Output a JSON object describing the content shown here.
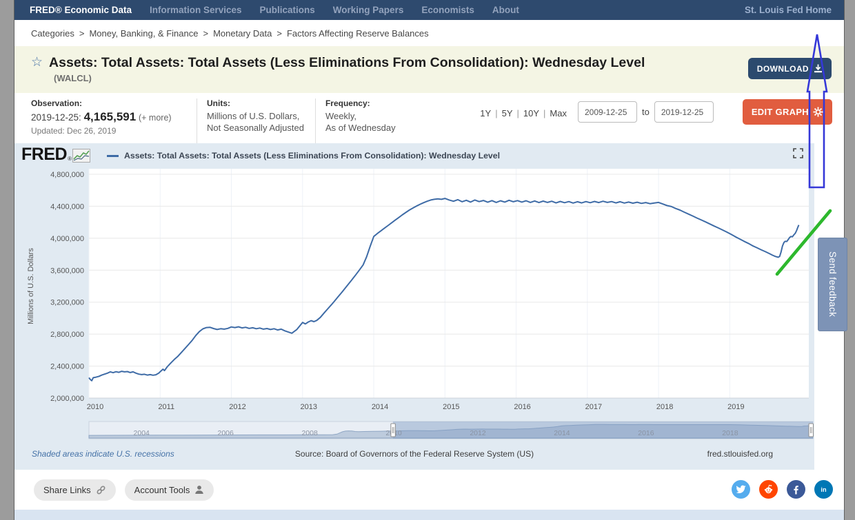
{
  "nav": {
    "brand": "FRED® Economic Data",
    "items": [
      "Information Services",
      "Publications",
      "Working Papers",
      "Economists",
      "About"
    ],
    "right_link": "St. Louis Fed Home"
  },
  "breadcrumb": {
    "separator": ">",
    "parts": [
      "Categories",
      "Money, Banking, & Finance",
      "Monetary Data",
      "Factors Affecting Reserve Balances"
    ]
  },
  "series_header": {
    "title": "Assets: Total Assets: Total Assets (Less Eliminations From Consolidation): Wednesday Level",
    "series_id": "(WALCL)",
    "download_label": "DOWNLOAD"
  },
  "meta": {
    "observation_label": "Observation:",
    "observation_date": "2019-12-25:",
    "observation_value": "4,165,591",
    "observation_more": "(+ more)",
    "updated": "Updated: Dec 26, 2019",
    "units_label": "Units:",
    "units_line1": "Millions of U.S. Dollars,",
    "units_line2": "Not Seasonally Adjusted",
    "frequency_label": "Frequency:",
    "frequency_line1": "Weekly,",
    "frequency_line2": "As of Wednesday"
  },
  "range_controls": {
    "presets": [
      "1Y",
      "5Y",
      "10Y",
      "Max"
    ],
    "start_date": "2009-12-25",
    "to_label": "to",
    "end_date": "2019-12-25",
    "edit_graph_label": "EDIT GRAPH"
  },
  "chart": {
    "logo_text": "FRED",
    "logo_reg": "®",
    "legend_label": "Assets: Total Assets: Total Assets (Less Eliminations From Consolidation): Wednesday Level"
  },
  "chart_footer": {
    "recessions_note": "Shaded areas indicate U.S. recessions",
    "source_note": "Source: Board of Governors of the Federal Reserve System (US)",
    "site_link": "fred.stlouisfed.org"
  },
  "actions": {
    "share_label": "Share Links",
    "account_label": "Account Tools"
  },
  "social": [
    {
      "name": "twitter",
      "color": "#55acee"
    },
    {
      "name": "reddit",
      "color": "#ff4500"
    },
    {
      "name": "facebook",
      "color": "#3b5998"
    },
    {
      "name": "linkedin",
      "color": "#0077b5"
    }
  ],
  "feedback_label": "Send feedback",
  "colors": {
    "nav_bg": "#2e4a6e",
    "band_bg": "#f4f5e4",
    "btn_navy": "#2c4a6e",
    "btn_orange": "#e15d3f",
    "panel_bg": "#e1eaf2",
    "line_blue": "#3e6ba6",
    "feedback_bg": "#7d93b6",
    "annotation_blue": "#3538d8",
    "annotation_green": "#2db82d"
  },
  "chart_data": {
    "type": "line",
    "title": "Assets: Total Assets: Total Assets (Less Eliminations From Consolidation): Wednesday Level",
    "ylabel": "Millions of U.S. Dollars",
    "ylim": [
      2000000,
      4800000
    ],
    "yticks": [
      2000000,
      2400000,
      2800000,
      3200000,
      3600000,
      4000000,
      4400000,
      4800000
    ],
    "xticks": [
      2010,
      2011,
      2012,
      2013,
      2014,
      2015,
      2016,
      2017,
      2018,
      2019
    ],
    "xlim": [
      2010,
      2020.11
    ],
    "grid": true,
    "legend_position": "top",
    "series": [
      {
        "name": "WALCL",
        "points": [
          [
            2010.0,
            2255000
          ],
          [
            2010.02,
            2232000
          ],
          [
            2010.04,
            2218000
          ],
          [
            2010.06,
            2255000
          ],
          [
            2010.1,
            2262000
          ],
          [
            2010.14,
            2272000
          ],
          [
            2010.18,
            2288000
          ],
          [
            2010.22,
            2300000
          ],
          [
            2010.26,
            2312000
          ],
          [
            2010.3,
            2328000
          ],
          [
            2010.34,
            2318000
          ],
          [
            2010.38,
            2330000
          ],
          [
            2010.42,
            2322000
          ],
          [
            2010.46,
            2335000
          ],
          [
            2010.5,
            2328000
          ],
          [
            2010.54,
            2332000
          ],
          [
            2010.58,
            2320000
          ],
          [
            2010.62,
            2328000
          ],
          [
            2010.66,
            2312000
          ],
          [
            2010.7,
            2300000
          ],
          [
            2010.74,
            2294000
          ],
          [
            2010.78,
            2298000
          ],
          [
            2010.82,
            2288000
          ],
          [
            2010.86,
            2294000
          ],
          [
            2010.9,
            2286000
          ],
          [
            2010.94,
            2292000
          ],
          [
            2010.98,
            2312000
          ],
          [
            2011.0,
            2330000
          ],
          [
            2011.04,
            2362000
          ],
          [
            2011.06,
            2344000
          ],
          [
            2011.1,
            2392000
          ],
          [
            2011.15,
            2440000
          ],
          [
            2011.2,
            2484000
          ],
          [
            2011.25,
            2524000
          ],
          [
            2011.3,
            2572000
          ],
          [
            2011.35,
            2622000
          ],
          [
            2011.4,
            2672000
          ],
          [
            2011.45,
            2722000
          ],
          [
            2011.5,
            2782000
          ],
          [
            2011.55,
            2832000
          ],
          [
            2011.6,
            2866000
          ],
          [
            2011.65,
            2882000
          ],
          [
            2011.7,
            2886000
          ],
          [
            2011.75,
            2870000
          ],
          [
            2011.8,
            2858000
          ],
          [
            2011.85,
            2868000
          ],
          [
            2011.9,
            2862000
          ],
          [
            2011.95,
            2872000
          ],
          [
            2012.0,
            2890000
          ],
          [
            2012.05,
            2882000
          ],
          [
            2012.1,
            2892000
          ],
          [
            2012.15,
            2878000
          ],
          [
            2012.2,
            2886000
          ],
          [
            2012.25,
            2872000
          ],
          [
            2012.3,
            2880000
          ],
          [
            2012.35,
            2868000
          ],
          [
            2012.4,
            2876000
          ],
          [
            2012.45,
            2862000
          ],
          [
            2012.5,
            2870000
          ],
          [
            2012.55,
            2858000
          ],
          [
            2012.6,
            2868000
          ],
          [
            2012.65,
            2852000
          ],
          [
            2012.7,
            2862000
          ],
          [
            2012.75,
            2842000
          ],
          [
            2012.8,
            2826000
          ],
          [
            2012.85,
            2812000
          ],
          [
            2012.88,
            2832000
          ],
          [
            2012.92,
            2858000
          ],
          [
            2012.96,
            2902000
          ],
          [
            2013.0,
            2946000
          ],
          [
            2013.04,
            2928000
          ],
          [
            2013.08,
            2952000
          ],
          [
            2013.12,
            2968000
          ],
          [
            2013.16,
            2956000
          ],
          [
            2013.2,
            2972000
          ],
          [
            2013.25,
            3010000
          ],
          [
            2013.3,
            3062000
          ],
          [
            2013.35,
            3112000
          ],
          [
            2013.4,
            3162000
          ],
          [
            2013.45,
            3215000
          ],
          [
            2013.5,
            3268000
          ],
          [
            2013.55,
            3322000
          ],
          [
            2013.6,
            3378000
          ],
          [
            2013.65,
            3432000
          ],
          [
            2013.7,
            3488000
          ],
          [
            2013.75,
            3545000
          ],
          [
            2013.8,
            3604000
          ],
          [
            2013.85,
            3665000
          ],
          [
            2013.9,
            3768000
          ],
          [
            2013.95,
            3900000
          ],
          [
            2014.0,
            4022000
          ],
          [
            2014.05,
            4058000
          ],
          [
            2014.1,
            4092000
          ],
          [
            2014.15,
            4125000
          ],
          [
            2014.2,
            4158000
          ],
          [
            2014.25,
            4192000
          ],
          [
            2014.3,
            4225000
          ],
          [
            2014.35,
            4258000
          ],
          [
            2014.4,
            4292000
          ],
          [
            2014.45,
            4322000
          ],
          [
            2014.5,
            4352000
          ],
          [
            2014.55,
            4378000
          ],
          [
            2014.6,
            4402000
          ],
          [
            2014.65,
            4424000
          ],
          [
            2014.7,
            4444000
          ],
          [
            2014.75,
            4462000
          ],
          [
            2014.8,
            4478000
          ],
          [
            2014.85,
            4486000
          ],
          [
            2014.9,
            4492000
          ],
          [
            2014.95,
            4486000
          ],
          [
            2015.0,
            4498000
          ],
          [
            2015.06,
            4478000
          ],
          [
            2015.12,
            4462000
          ],
          [
            2015.18,
            4482000
          ],
          [
            2015.24,
            4456000
          ],
          [
            2015.3,
            4474000
          ],
          [
            2015.36,
            4452000
          ],
          [
            2015.42,
            4478000
          ],
          [
            2015.48,
            4458000
          ],
          [
            2015.54,
            4472000
          ],
          [
            2015.6,
            4450000
          ],
          [
            2015.66,
            4470000
          ],
          [
            2015.72,
            4448000
          ],
          [
            2015.78,
            4468000
          ],
          [
            2015.84,
            4452000
          ],
          [
            2015.9,
            4474000
          ],
          [
            2015.96,
            4456000
          ],
          [
            2016.02,
            4470000
          ],
          [
            2016.08,
            4452000
          ],
          [
            2016.14,
            4468000
          ],
          [
            2016.2,
            4448000
          ],
          [
            2016.26,
            4466000
          ],
          [
            2016.32,
            4446000
          ],
          [
            2016.38,
            4464000
          ],
          [
            2016.44,
            4448000
          ],
          [
            2016.5,
            4462000
          ],
          [
            2016.56,
            4442000
          ],
          [
            2016.62,
            4460000
          ],
          [
            2016.68,
            4444000
          ],
          [
            2016.74,
            4458000
          ],
          [
            2016.8,
            4440000
          ],
          [
            2016.86,
            4456000
          ],
          [
            2016.92,
            4442000
          ],
          [
            2016.98,
            4458000
          ],
          [
            2017.04,
            4444000
          ],
          [
            2017.1,
            4460000
          ],
          [
            2017.16,
            4446000
          ],
          [
            2017.22,
            4462000
          ],
          [
            2017.28,
            4448000
          ],
          [
            2017.34,
            4458000
          ],
          [
            2017.4,
            4442000
          ],
          [
            2017.46,
            4456000
          ],
          [
            2017.52,
            4440000
          ],
          [
            2017.58,
            4452000
          ],
          [
            2017.64,
            4438000
          ],
          [
            2017.7,
            4450000
          ],
          [
            2017.76,
            4436000
          ],
          [
            2017.82,
            4446000
          ],
          [
            2017.88,
            4432000
          ],
          [
            2017.94,
            4440000
          ],
          [
            2018.0,
            4448000
          ],
          [
            2018.06,
            4428000
          ],
          [
            2018.12,
            4408000
          ],
          [
            2018.18,
            4396000
          ],
          [
            2018.24,
            4372000
          ],
          [
            2018.3,
            4352000
          ],
          [
            2018.36,
            4326000
          ],
          [
            2018.42,
            4302000
          ],
          [
            2018.48,
            4278000
          ],
          [
            2018.54,
            4252000
          ],
          [
            2018.6,
            4228000
          ],
          [
            2018.66,
            4204000
          ],
          [
            2018.72,
            4178000
          ],
          [
            2018.78,
            4152000
          ],
          [
            2018.84,
            4128000
          ],
          [
            2018.9,
            4102000
          ],
          [
            2018.96,
            4076000
          ],
          [
            2019.02,
            4048000
          ],
          [
            2019.08,
            4018000
          ],
          [
            2019.14,
            3990000
          ],
          [
            2019.2,
            3962000
          ],
          [
            2019.26,
            3936000
          ],
          [
            2019.32,
            3906000
          ],
          [
            2019.38,
            3882000
          ],
          [
            2019.44,
            3856000
          ],
          [
            2019.5,
            3832000
          ],
          [
            2019.56,
            3806000
          ],
          [
            2019.6,
            3788000
          ],
          [
            2019.64,
            3772000
          ],
          [
            2019.68,
            3762000
          ],
          [
            2019.7,
            3772000
          ],
          [
            2019.72,
            3826000
          ],
          [
            2019.74,
            3902000
          ],
          [
            2019.76,
            3946000
          ],
          [
            2019.78,
            3962000
          ],
          [
            2019.8,
            3958000
          ],
          [
            2019.82,
            3982000
          ],
          [
            2019.84,
            4008000
          ],
          [
            2019.86,
            4022000
          ],
          [
            2019.88,
            4018000
          ],
          [
            2019.9,
            4042000
          ],
          [
            2019.92,
            4062000
          ],
          [
            2019.94,
            4098000
          ],
          [
            2019.955,
            4135000
          ],
          [
            2019.97,
            4165591
          ]
        ]
      }
    ],
    "minimap": {
      "xlim": [
        2002.75,
        2019.97
      ],
      "xticks": [
        2004,
        2006,
        2008,
        2010,
        2012,
        2014,
        2016,
        2018
      ],
      "selection": [
        2009.98,
        2019.97
      ],
      "pre2010_points": [
        [
          2002.75,
          700000
        ],
        [
          2003.2,
          730000
        ],
        [
          2003.8,
          752000
        ],
        [
          2004.4,
          772000
        ],
        [
          2005.0,
          792000
        ],
        [
          2005.6,
          812000
        ],
        [
          2006.2,
          832000
        ],
        [
          2006.8,
          852000
        ],
        [
          2007.4,
          870000
        ],
        [
          2007.9,
          888000
        ],
        [
          2008.3,
          906000
        ],
        [
          2008.55,
          924000
        ],
        [
          2008.65,
          1120000
        ],
        [
          2008.72,
          1580000
        ],
        [
          2008.78,
          1950000
        ],
        [
          2008.85,
          2180000
        ],
        [
          2008.92,
          2248000
        ],
        [
          2009.0,
          2210000
        ],
        [
          2009.08,
          2050000
        ],
        [
          2009.16,
          1996000
        ],
        [
          2009.3,
          2044000
        ],
        [
          2009.5,
          2082000
        ],
        [
          2009.7,
          2142000
        ],
        [
          2009.9,
          2208000
        ]
      ]
    }
  }
}
